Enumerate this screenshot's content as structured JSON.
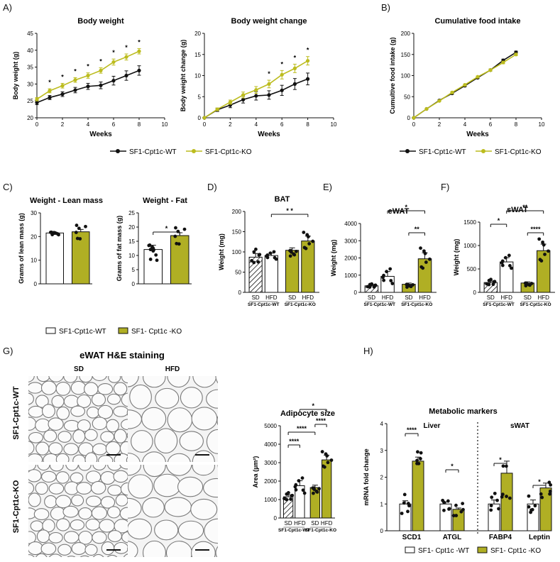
{
  "colors": {
    "wt": "#111111",
    "ko": "#bcbc1e",
    "ko_fill": "#b0af24"
  },
  "panel_labels": {
    "A": "A)",
    "B": "B)",
    "C": "C)",
    "D": "D)",
    "E": "E)",
    "F": "F)",
    "G": "G)",
    "H": "H)"
  },
  "legends": {
    "wt": "SF1-Cpt1c-WT",
    "ko": "SF1-Cpt1c-KO",
    "wt_spaced": "SF1- Cpt1c -WT",
    "ko_spaced": "SF1- Cpt1c -KO"
  },
  "histology": {
    "title": "eWAT H&E staining",
    "col_sd": "SD",
    "col_hfd": "HFD",
    "row_wt": "SF1-Cpt1c-WT",
    "row_ko": "SF1-Cpt1c-KO"
  },
  "h_sections": {
    "liver": "Liver",
    "swat": "sWAT"
  },
  "chart_data": [
    {
      "id": "bw",
      "type": "line",
      "title": "Body weight",
      "xlabel": "Weeks",
      "ylabel": "Body weight (g)",
      "xlim": [
        0,
        10
      ],
      "ylim": [
        20,
        45
      ],
      "xticks": [
        0,
        2,
        4,
        6,
        8,
        10
      ],
      "yticks": [
        20,
        25,
        30,
        35,
        40,
        45
      ],
      "x": [
        0,
        1,
        2,
        3,
        4,
        5,
        6,
        7,
        8
      ],
      "series": [
        {
          "name": "SF1-Cpt1c-WT",
          "values": [
            24.5,
            26,
            27,
            28.2,
            29.3,
            29.6,
            31,
            32.5,
            34
          ],
          "err": [
            0.6,
            0.6,
            0.7,
            0.8,
            0.9,
            1,
            1.3,
            1.4,
            1.4
          ]
        },
        {
          "name": "SF1-Cpt1c-KO",
          "values": [
            25.5,
            28,
            29.5,
            31.2,
            32.5,
            34,
            36.5,
            38,
            39.7
          ],
          "err": [
            0.5,
            0.6,
            0.7,
            0.7,
            0.8,
            0.8,
            0.9,
            0.9,
            0.8
          ]
        }
      ],
      "stars": [
        "*",
        "*",
        "*",
        "*",
        "*",
        "*",
        "*",
        "*"
      ]
    },
    {
      "id": "bwc",
      "type": "line",
      "title": "Body weight change",
      "xlabel": "Weeks",
      "ylabel": "Body weight change (g)",
      "xlim": [
        0,
        10
      ],
      "ylim": [
        0,
        20
      ],
      "xticks": [
        0,
        2,
        4,
        6,
        8,
        10
      ],
      "yticks": [
        0,
        5,
        10,
        15,
        20
      ],
      "x": [
        0,
        1,
        2,
        3,
        4,
        5,
        6,
        7,
        8
      ],
      "series": [
        {
          "name": "SF1-Cpt1c-WT",
          "values": [
            0,
            1.9,
            3,
            4.3,
            5.2,
            5.4,
            6.5,
            8,
            9.2
          ],
          "err": [
            0,
            0.4,
            0.6,
            0.8,
            1,
            1,
            1.2,
            1.3,
            1.4
          ]
        },
        {
          "name": "SF1-Cpt1c-KO",
          "values": [
            0,
            2,
            3.7,
            5.4,
            6.6,
            8,
            10.2,
            11.7,
            13.5
          ],
          "err": [
            0,
            0.3,
            0.5,
            0.7,
            0.8,
            0.9,
            1,
            1,
            1
          ]
        }
      ],
      "stars": [
        "*",
        "*",
        "*",
        "*"
      ]
    },
    {
      "id": "food",
      "type": "line",
      "title": "Cumulative food intake",
      "xlabel": "Weeks",
      "ylabel": "Cumultive food intake (g)",
      "xlim": [
        0,
        10
      ],
      "ylim": [
        0,
        200
      ],
      "xticks": [
        0,
        2,
        4,
        6,
        8,
        10
      ],
      "yticks": [
        0,
        50,
        100,
        150,
        200
      ],
      "x": [
        0,
        1,
        2,
        3,
        4,
        5,
        6,
        7,
        8
      ],
      "series": [
        {
          "name": "SF1-Cpt1c-WT",
          "values": [
            0,
            21,
            41,
            58,
            76,
            95,
            113,
            136,
            155
          ],
          "err": [
            0,
            1,
            1.5,
            2,
            2,
            2,
            2.5,
            3,
            3
          ]
        },
        {
          "name": "SF1-Cpt1c-KO",
          "values": [
            0,
            21,
            40,
            60,
            78,
            97,
            113,
            131,
            150
          ],
          "err": [
            0,
            1,
            1.5,
            2,
            2,
            2,
            2.5,
            3,
            3
          ]
        }
      ]
    },
    {
      "id": "lean",
      "type": "bar",
      "title": "Weight - Lean mass",
      "ylabel": "Grams of lean mass (g)",
      "ylim": [
        0,
        30
      ],
      "yticks": [
        0,
        10,
        20,
        30
      ],
      "values": [
        21.5,
        22
      ],
      "err": [
        0.3,
        1
      ]
    },
    {
      "id": "fat",
      "type": "bar",
      "title": "Weight - Fat",
      "ylabel": "Grams of fat mass (g)",
      "ylim": [
        0,
        25
      ],
      "yticks": [
        0,
        5,
        10,
        15,
        20,
        25
      ],
      "values": [
        12.1,
        17
      ],
      "err": [
        1.5,
        1
      ],
      "annotations": [
        "*"
      ]
    },
    {
      "id": "bat",
      "type": "bar",
      "title": "BAT",
      "ylabel": "Weight (mg)",
      "ylim": [
        0,
        200
      ],
      "yticks": [
        0,
        50,
        100,
        150,
        200
      ],
      "categories": [
        "SD",
        "HFD",
        "SD",
        "HFD"
      ],
      "groups": [
        "SF1-Cpt1c-WT",
        "SF1-Cpt1c-KO"
      ],
      "values": [
        87,
        91,
        104,
        127
      ],
      "err": [
        9,
        6,
        6,
        12
      ],
      "annotations": [
        "* *"
      ]
    },
    {
      "id": "ewat",
      "type": "bar",
      "title": "eWAT",
      "ylabel": "Weight (mg)",
      "ylim": [
        0,
        4000
      ],
      "yticks": [
        0,
        1000,
        2000,
        3000,
        4000
      ],
      "categories": [
        "SD",
        "HFD",
        "SD",
        "HFD"
      ],
      "groups": [
        "SF1-Cpt1c-WT",
        "SF1-Cpt1c-KO"
      ],
      "values": [
        380,
        930,
        470,
        1950
      ],
      "err": [
        50,
        280,
        70,
        350
      ],
      "annotations": [
        "*",
        "**"
      ]
    },
    {
      "id": "swat",
      "type": "bar",
      "title": "sWAT",
      "ylabel": "Weight (mg)",
      "ylim": [
        0,
        1500
      ],
      "yticks": [
        0,
        500,
        1000,
        1500
      ],
      "categories": [
        "SD",
        "HFD",
        "SD",
        "HFD"
      ],
      "groups": [
        "SF1-Cpt1c-WT",
        "SF1-Cpt1c-KO"
      ],
      "values": [
        210,
        650,
        200,
        890
      ],
      "err": [
        30,
        90,
        25,
        140
      ],
      "annotations": [
        "*",
        "**",
        "****"
      ]
    },
    {
      "id": "adipo",
      "type": "bar",
      "title": "Adipocyte size",
      "ylabel": "Area (µm²)",
      "ylim": [
        0,
        5000
      ],
      "yticks": [
        0,
        1000,
        2000,
        3000,
        4000,
        5000
      ],
      "categories": [
        "SD",
        "HFD",
        "SD",
        "HFD"
      ],
      "groups": [
        "SF1-Cpt1c-WT",
        "SF1-Cpt1c-KO"
      ],
      "values": [
        1150,
        1750,
        1650,
        3150
      ],
      "err": [
        100,
        270,
        130,
        250
      ],
      "annotations": [
        "*",
        "****",
        "****",
        "****"
      ]
    },
    {
      "id": "markers",
      "type": "bar",
      "title": "Metabolic markers",
      "ylabel": "mRNA fold change",
      "ylim": [
        0,
        4
      ],
      "yticks": [
        0,
        1,
        2,
        3,
        4
      ],
      "categories": [
        "SCD1",
        "ATGL",
        "FABP4",
        "Leptin"
      ],
      "series": [
        {
          "name": "SF1- Cpt1c -WT",
          "values": [
            1,
            1,
            1,
            1
          ],
          "err": [
            0.12,
            0.08,
            0.15,
            0.15
          ]
        },
        {
          "name": "SF1- Cpt1c -KO",
          "values": [
            2.6,
            0.8,
            2.15,
            1.6
          ],
          "err": [
            0.15,
            0.05,
            0.45,
            0.18
          ]
        }
      ],
      "annotations": [
        "****",
        "*",
        "*",
        "*"
      ]
    }
  ]
}
